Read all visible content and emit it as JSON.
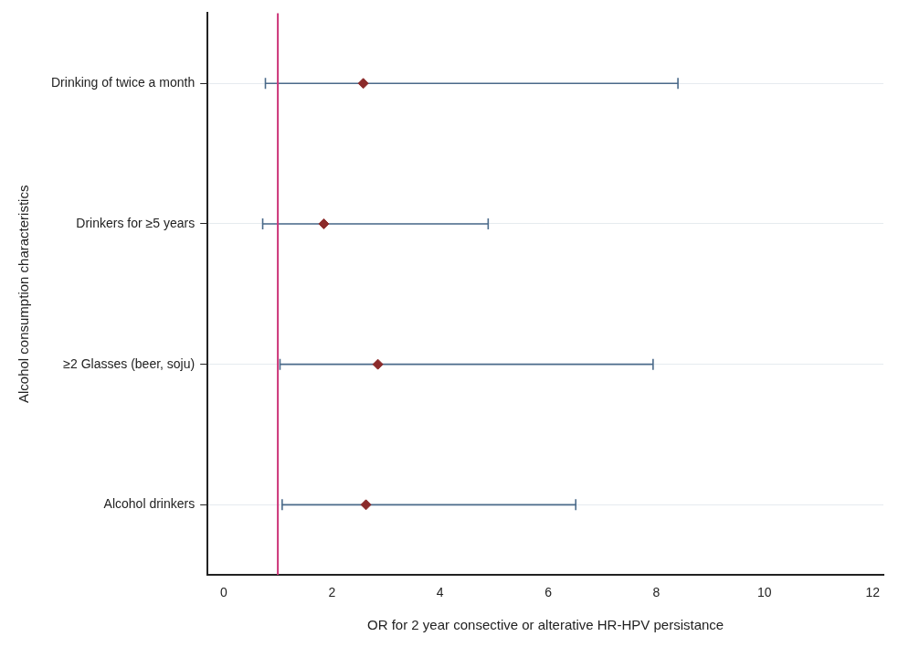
{
  "chart_data": {
    "type": "forest",
    "categories": [
      "Drinking of twice a month",
      "Drinkers for ≥5 years",
      "≥2 Glasses (beer, soju)",
      "Alcohol drinkers"
    ],
    "values": [
      2.58,
      1.85,
      2.85,
      2.63
    ],
    "ci_lower": [
      0.77,
      0.72,
      1.04,
      1.08
    ],
    "ci_upper": [
      8.4,
      4.89,
      7.94,
      6.51
    ],
    "reference_line": 1,
    "xlim": [
      -0.3,
      12.2
    ],
    "xticks": [
      0,
      2,
      4,
      6,
      8,
      10,
      12
    ],
    "xlabel": "OR for 2 year consective or alterative HR-HPV persistance",
    "ylabel": "Alcohol consumption characteristics",
    "orientation": "horizontal",
    "grid": true,
    "color": "#8b2a2a",
    "marker": "diamond"
  }
}
